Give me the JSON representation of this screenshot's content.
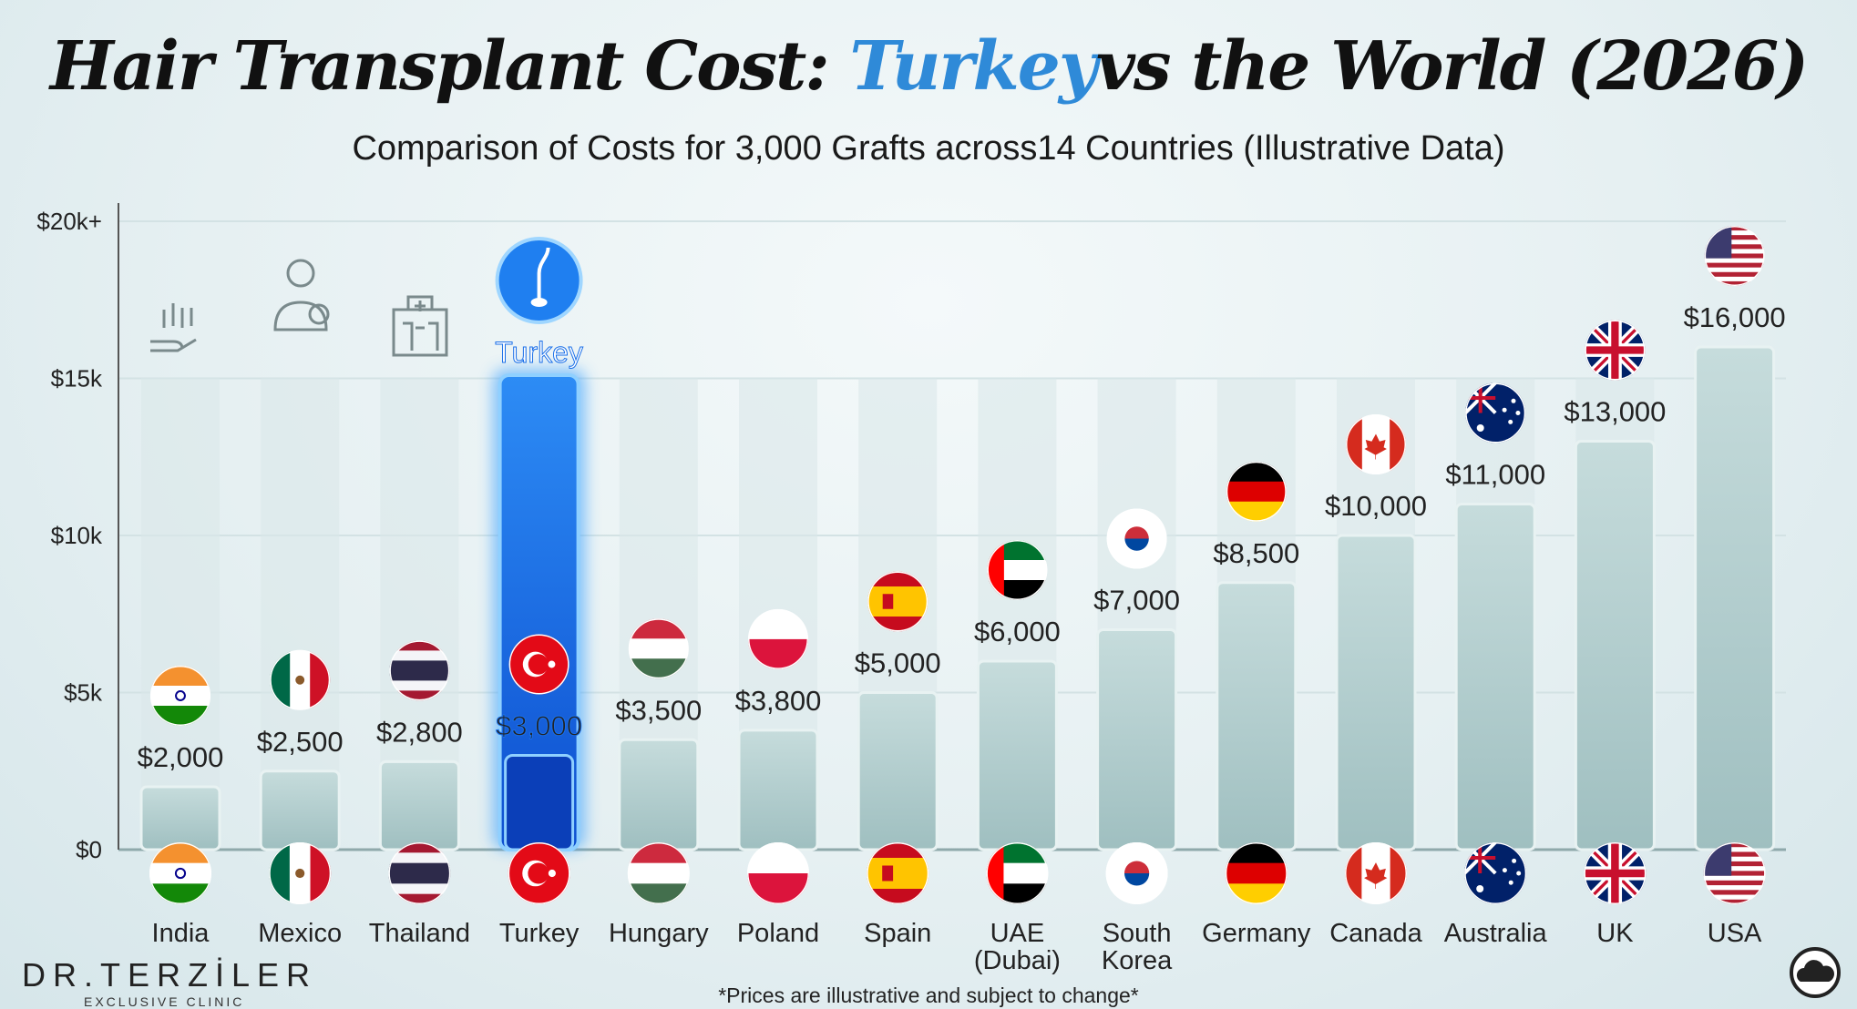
{
  "title": {
    "prefix": "Hair Transplant Cost: ",
    "highlight": "Turkey",
    "suffix": "vs the World (2026)"
  },
  "subtitle": "Comparison of Costs for 3,000 Grafts across14 Countries (Illustrative Data)",
  "logo": {
    "name": "DR.TERZİLER",
    "tagline": "EXCLUSIVE CLINIC"
  },
  "footnote": "*Prices are illustrative and subject to change*",
  "highlight_label": "Turkey",
  "icons": [
    "hair-hand-icon",
    "doctor-icon",
    "hospital-icon",
    "hair-follicle-icon",
    "cloud-icon"
  ],
  "colors": {
    "bar": "#a9c7c8",
    "highlight": "#1a6fe8",
    "highlight_title": "#2f8ad8"
  },
  "chart_data": {
    "type": "bar",
    "title": "Hair Transplant Cost: Turkey vs the World (2026)",
    "categories": [
      "India",
      "Mexico",
      "Thailand",
      "Turkey",
      "Hungary",
      "Poland",
      "Spain",
      "UAE (Dubai)",
      "South Korea",
      "Germany",
      "Canada",
      "Australia",
      "UK",
      "USA"
    ],
    "values": [
      2000,
      2500,
      2800,
      3000,
      3500,
      3800,
      5000,
      6000,
      7000,
      8500,
      10000,
      11000,
      13000,
      16000
    ],
    "value_labels": [
      "$2,000",
      "$2,500",
      "$2,800",
      "$3,000",
      "$3,500",
      "$3,800",
      "$5,000",
      "$6,000",
      "$7,000",
      "$8,500",
      "$10,000",
      "$11,000",
      "$13,000",
      "$16,000"
    ],
    "flags": [
      "in",
      "mx",
      "th",
      "tr",
      "hu",
      "pl",
      "es",
      "ae",
      "kr",
      "de",
      "ca",
      "au",
      "gb",
      "us"
    ],
    "highlight": "Turkey",
    "ylim": [
      0,
      20000
    ],
    "yticks": [
      0,
      5000,
      10000,
      15000,
      20000
    ],
    "ytick_labels": [
      "$0",
      "$5k",
      "$10k",
      "$15k",
      "$20k+"
    ],
    "grid": true,
    "xlabel": "",
    "ylabel": ""
  }
}
